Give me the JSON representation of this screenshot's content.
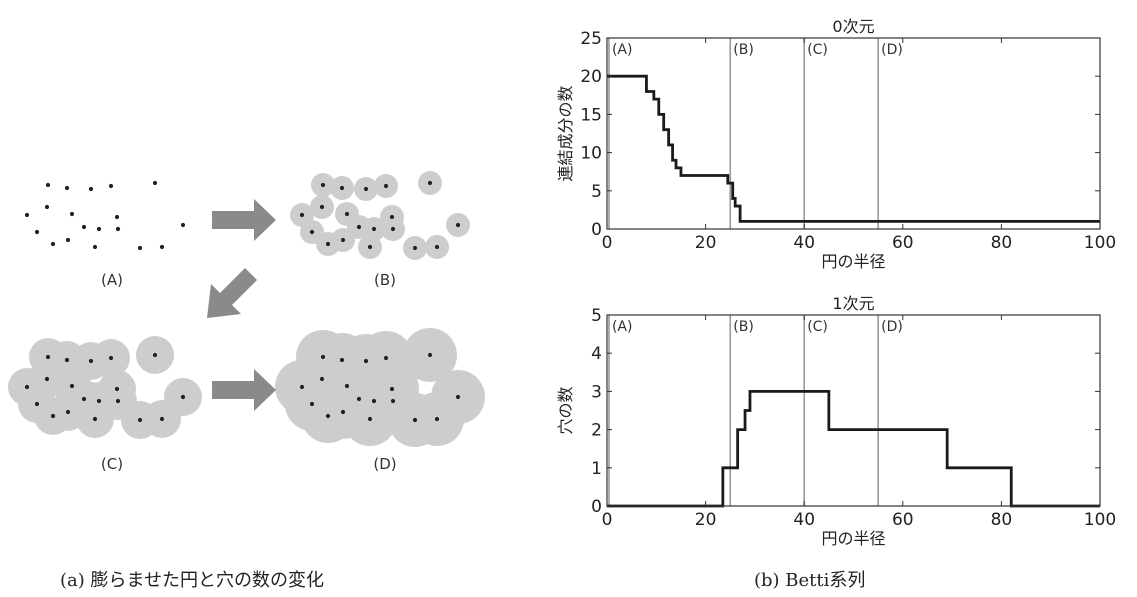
{
  "caption_a": "(a) 膨らませた円と穴の数の変化",
  "caption_b": "(b) Betti系列",
  "panel_a": {
    "stage_labels": [
      "(A)",
      "(B)",
      "(C)",
      "(D)"
    ],
    "arrow_color": "#8a8a8a",
    "disc_color": "#cdcdcd",
    "point_color": "#222222"
  },
  "chart_data": [
    {
      "type": "line",
      "title": "0次元",
      "xlabel": "円の半径",
      "ylabel": "連結成分の数",
      "xlim": [
        0,
        100
      ],
      "ylim": [
        0,
        25
      ],
      "xticks": [
        0,
        20,
        40,
        60,
        80,
        100
      ],
      "yticks": [
        0,
        5,
        10,
        15,
        20,
        25
      ],
      "grid": false,
      "markers": [
        {
          "x": 0.4,
          "label": "(A)"
        },
        {
          "x": 25,
          "label": "(B)"
        },
        {
          "x": 40,
          "label": "(C)"
        },
        {
          "x": 55,
          "label": "(D)"
        }
      ],
      "series": [
        {
          "x": [
            0,
            8,
            8,
            9.5,
            9.5,
            10.5,
            10.5,
            11.5,
            11.5,
            12.5,
            12.5,
            13.3,
            13.3,
            14,
            14,
            15,
            15,
            24.5,
            24.5,
            25.5,
            25.5,
            26,
            26,
            27,
            27,
            100
          ],
          "y": [
            20,
            20,
            18,
            18,
            17,
            17,
            15,
            15,
            13,
            13,
            11,
            11,
            9,
            9,
            8,
            8,
            7,
            7,
            6,
            6,
            4,
            4,
            3,
            3,
            1,
            1
          ]
        }
      ]
    },
    {
      "type": "line",
      "title": "1次元",
      "xlabel": "円の半径",
      "ylabel": "穴の数",
      "xlim": [
        0,
        100
      ],
      "ylim": [
        0,
        5
      ],
      "xticks": [
        0,
        20,
        40,
        60,
        80,
        100
      ],
      "yticks": [
        0,
        1,
        2,
        3,
        4,
        5
      ],
      "grid": false,
      "markers": [
        {
          "x": 0.4,
          "label": "(A)"
        },
        {
          "x": 25,
          "label": "(B)"
        },
        {
          "x": 40,
          "label": "(C)"
        },
        {
          "x": 55,
          "label": "(D)"
        }
      ],
      "series": [
        {
          "x": [
            0,
            23.5,
            23.5,
            26.5,
            26.5,
            28,
            28,
            29,
            29,
            45,
            45,
            69,
            69,
            82,
            82,
            100
          ],
          "y": [
            0,
            0,
            1,
            1,
            2,
            2,
            2.5,
            2.5,
            3,
            3,
            2,
            2,
            1,
            1,
            0,
            0
          ]
        }
      ]
    }
  ]
}
